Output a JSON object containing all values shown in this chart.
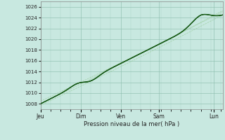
{
  "title": "",
  "xlabel": "Pression niveau de la mer( hPa )",
  "ylabel": "",
  "bg_color": "#c8e8e0",
  "grid_color": "#88bbaa",
  "line_color_dark": "#1a5c1a",
  "line_color_medium": "#2d7a2d",
  "line_color_light": "#66aa66",
  "line_color_dashed": "#99cc99",
  "ylim": [
    1007,
    1027
  ],
  "yticks": [
    1008,
    1010,
    1012,
    1014,
    1016,
    1018,
    1020,
    1022,
    1024,
    1026
  ],
  "x_labels": [
    "Jeu",
    "Dim",
    "Ven",
    "Sam",
    "Lun"
  ],
  "x_tick_positions": [
    0.0,
    0.22,
    0.44,
    0.65,
    0.95
  ],
  "n_points": 300
}
